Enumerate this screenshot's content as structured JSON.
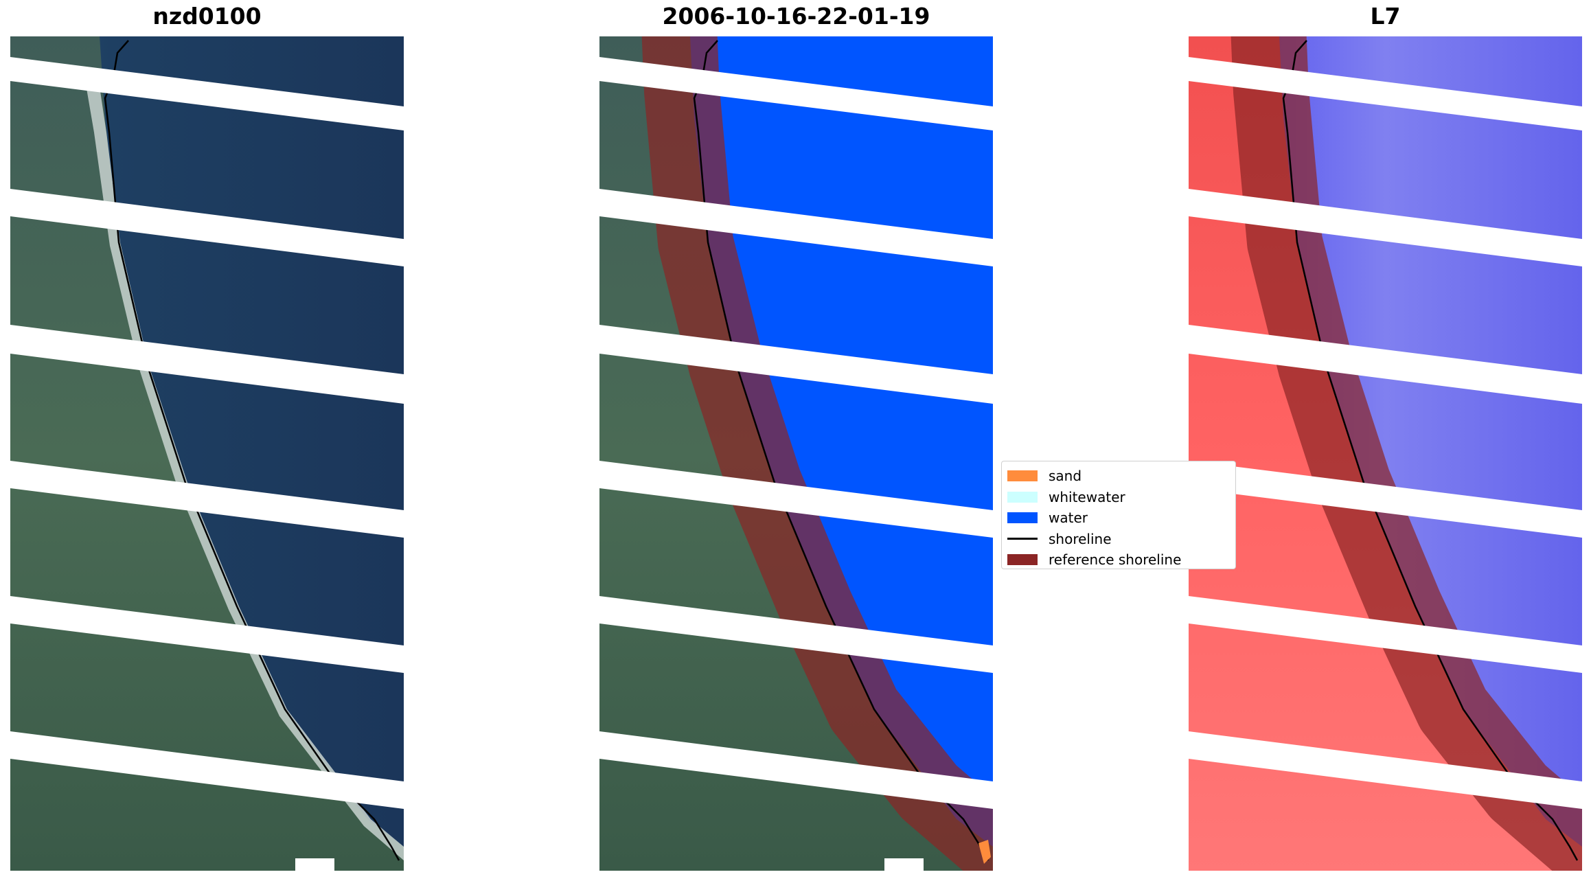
{
  "panels": [
    {
      "title": "nzd0100"
    },
    {
      "title": "2006-10-16-22-01-19"
    },
    {
      "title": "L7"
    }
  ],
  "legend": {
    "items": [
      {
        "label": "sand",
        "kind": "patch",
        "color": "#ff8c3c"
      },
      {
        "label": "whitewater",
        "kind": "patch",
        "color": "#ccffff"
      },
      {
        "label": "water",
        "kind": "patch",
        "color": "#0055ff"
      },
      {
        "label": "shoreline",
        "kind": "line",
        "color": "#000000"
      },
      {
        "label": "reference shoreline",
        "kind": "patch",
        "color": "#8b2525"
      }
    ]
  },
  "colors": {
    "water_class": "#0055ff",
    "ocean_rgb": "#1d3a5c",
    "land_rgb": "#3e5a48",
    "reference_shoreline": "#8b2525",
    "index_land": "#ff5252",
    "index_water": "#5a5af2"
  }
}
